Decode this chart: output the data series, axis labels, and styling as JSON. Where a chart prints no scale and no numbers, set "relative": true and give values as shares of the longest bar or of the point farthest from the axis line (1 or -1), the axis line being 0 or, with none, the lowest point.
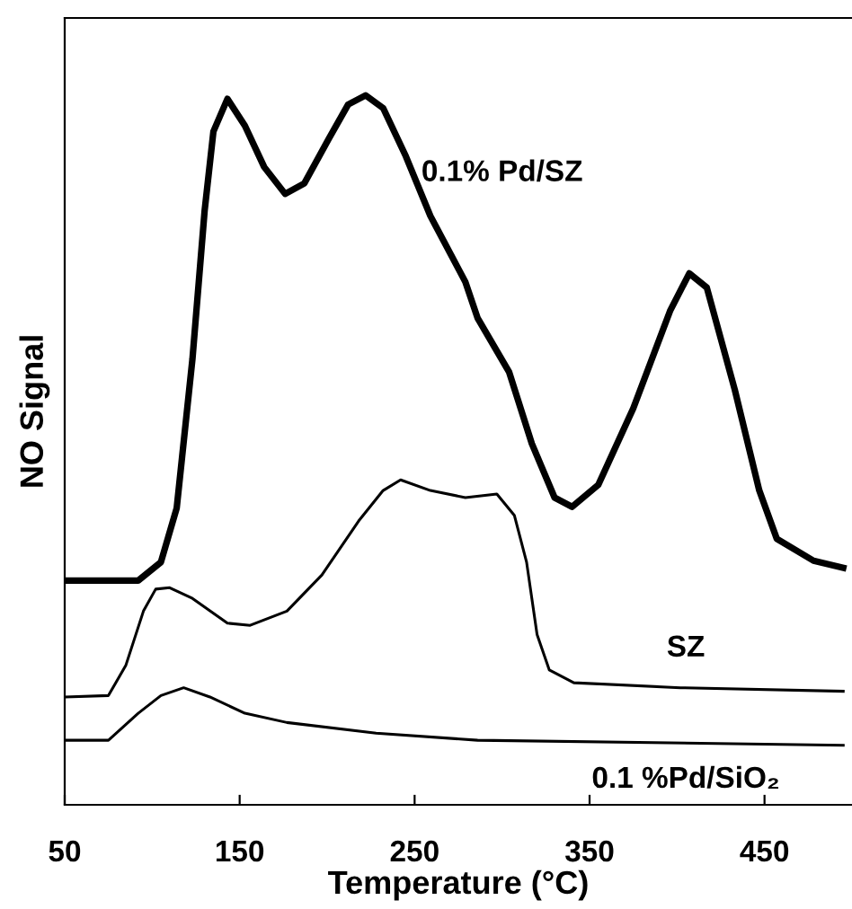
{
  "chart_data": {
    "type": "line",
    "relative": true,
    "xlabel": "Temperature (°C)",
    "ylabel": "NO Signal",
    "xlim": [
      50,
      500
    ],
    "xticks": [
      50,
      150,
      250,
      350,
      450
    ],
    "grid": false,
    "legend": false,
    "marker": "none",
    "line_style": "solid",
    "series": [
      {
        "name": "0.1% Pd/SZ",
        "color": "#000000",
        "x": [
          50,
          92,
          105,
          114,
          123,
          130,
          135,
          143,
          153,
          164,
          176,
          187,
          201,
          212,
          222,
          232,
          245,
          259,
          279,
          286,
          304,
          317,
          330,
          340,
          355,
          375,
          396,
          407,
          417,
          433,
          447,
          457,
          478,
          495
        ],
        "values": [
          0.316,
          0.316,
          0.342,
          0.418,
          0.628,
          0.838,
          0.949,
          0.995,
          0.957,
          0.899,
          0.861,
          0.876,
          0.939,
          0.987,
          1.0,
          0.982,
          0.914,
          0.83,
          0.737,
          0.686,
          0.61,
          0.509,
          0.433,
          0.42,
          0.451,
          0.559,
          0.696,
          0.749,
          0.729,
          0.585,
          0.443,
          0.375,
          0.344,
          0.334
        ]
      },
      {
        "name": "SZ",
        "color": "#000000",
        "x": [
          50,
          75,
          85,
          95,
          102,
          110,
          123,
          143,
          156,
          177,
          197,
          218,
          232,
          242,
          259,
          279,
          297,
          307,
          314,
          320,
          327,
          341,
          402,
          495
        ],
        "values": [
          0.152,
          0.154,
          0.197,
          0.273,
          0.304,
          0.306,
          0.291,
          0.256,
          0.253,
          0.273,
          0.324,
          0.4,
          0.443,
          0.458,
          0.443,
          0.433,
          0.438,
          0.408,
          0.342,
          0.24,
          0.19,
          0.172,
          0.165,
          0.16
        ]
      },
      {
        "name": "0.1 %Pd/SiO₂",
        "color": "#000000",
        "x": [
          50,
          75,
          92,
          105,
          118,
          133,
          153,
          177,
          228,
          286,
          495
        ],
        "values": [
          0.091,
          0.091,
          0.129,
          0.154,
          0.165,
          0.152,
          0.129,
          0.116,
          0.101,
          0.091,
          0.084
        ]
      }
    ]
  }
}
